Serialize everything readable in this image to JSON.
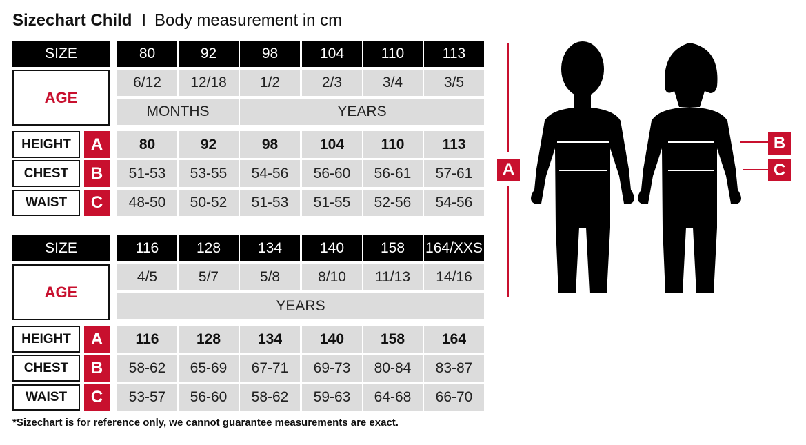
{
  "title": {
    "main": "Sizechart Child",
    "separator": "I",
    "subtitle": "Body measurement in cm"
  },
  "labels": {
    "size": "SIZE",
    "age": "AGE",
    "height": "HEIGHT",
    "chest": "CHEST",
    "waist": "WAIST",
    "badge_height": "A",
    "badge_chest": "B",
    "badge_waist": "C"
  },
  "tables": [
    {
      "sizes": [
        "80",
        "92",
        "98",
        "104",
        "110",
        "113"
      ],
      "ages": [
        "6/12",
        "12/18",
        "1/2",
        "2/3",
        "3/4",
        "3/5"
      ],
      "age_units": [
        {
          "label": "MONTHS",
          "span": 2
        },
        {
          "label": "YEARS",
          "span": 4
        }
      ],
      "height": [
        "80",
        "92",
        "98",
        "104",
        "110",
        "113"
      ],
      "chest": [
        "51-53",
        "53-55",
        "54-56",
        "56-60",
        "56-61",
        "57-61"
      ],
      "waist": [
        "48-50",
        "50-52",
        "51-53",
        "51-55",
        "52-56",
        "54-56"
      ]
    },
    {
      "sizes": [
        "116",
        "128",
        "134",
        "140",
        "158",
        "164/XXS"
      ],
      "ages": [
        "4/5",
        "5/7",
        "5/8",
        "8/10",
        "11/13",
        "14/16"
      ],
      "age_units": [
        {
          "label": "YEARS",
          "span": 6
        }
      ],
      "height": [
        "116",
        "128",
        "134",
        "140",
        "158",
        "164"
      ],
      "chest": [
        "58-62",
        "65-69",
        "67-71",
        "69-73",
        "80-84",
        "83-87"
      ],
      "waist": [
        "53-57",
        "56-60",
        "58-62",
        "59-63",
        "64-68",
        "66-70"
      ]
    }
  ],
  "figure": {
    "marker_height": "A",
    "marker_chest": "B",
    "marker_waist": "C"
  },
  "footnote": "*Sizechart is for reference only, we cannot guarantee measurements are exact.",
  "colors": {
    "accent": "#c8102e",
    "header": "#000000",
    "cell": "#dcdcdc"
  }
}
